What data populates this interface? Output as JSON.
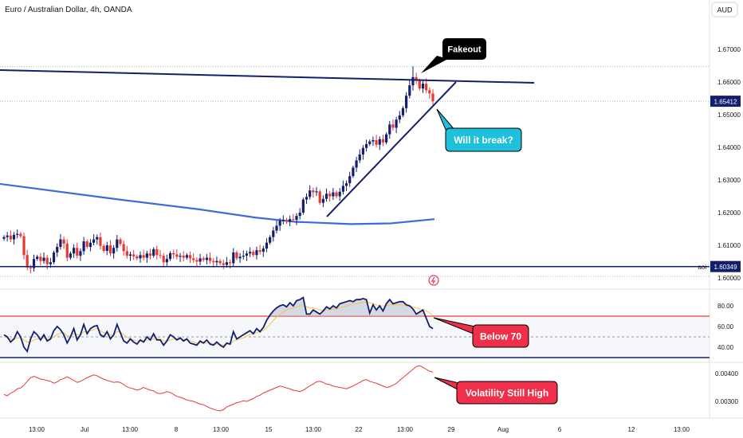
{
  "header": {
    "title": "Euro / Australian Dollar, 4h, OANDA",
    "currency_button": "AUD"
  },
  "colors": {
    "up": "#131f6e",
    "down": "#e53935",
    "price_label_bg": "#131f6e",
    "ma": "#3d6bd8",
    "rsi_band": "#e53935",
    "vol": "#e53935",
    "callout_dark": "#000000",
    "callout_cyan": "#1ec0dc",
    "callout_red": "#f0304a"
  },
  "annotations": {
    "fakeout": "Fakeout",
    "will_it_break": "Will it break?",
    "below_70": "Below 70",
    "volatility": "Volatility Still High"
  },
  "chart_data": [
    {
      "type": "line",
      "subtype": "candlestick",
      "title": "Euro / Australian Dollar, 4h, OANDA",
      "ylim": [
        1.5975,
        1.6775
      ],
      "y_ticks": [
        "1.67000",
        "1.66000",
        "1.65000",
        "1.64000",
        "1.63000",
        "1.62000",
        "1.61000",
        "1.60000"
      ],
      "x_ticks": [
        "13:00",
        "Jul",
        "13:00",
        "8",
        "13:00",
        "15",
        "13:00",
        "22",
        "13:00",
        "29",
        "Aug",
        "6",
        "12",
        "13:00"
      ],
      "current_price": "1.65412",
      "aoi_label": "aoi",
      "aoi_price": "1.60349",
      "series": [
        {
          "name": "",
          "close": [
            1.6125,
            1.613,
            1.6118,
            1.6132,
            1.6135,
            1.6128,
            1.607,
            1.6032,
            1.603,
            1.6058,
            1.6065,
            1.6052,
            1.6062,
            1.6042,
            1.6048,
            1.6078,
            1.6095,
            1.6118,
            1.6105,
            1.6062,
            1.6075,
            1.6092,
            1.6068,
            1.6082,
            1.6112,
            1.6095,
            1.6108,
            1.6118,
            1.6125,
            1.6098,
            1.6083,
            1.61,
            1.6075,
            1.6092,
            1.6118,
            1.6104,
            1.6082,
            1.6068,
            1.6072,
            1.6066,
            1.606,
            1.607,
            1.6062,
            1.6075,
            1.6068,
            1.6088,
            1.607,
            1.6068,
            1.6048,
            1.6058,
            1.6076,
            1.6072,
            1.6065,
            1.6068,
            1.6062,
            1.607,
            1.606,
            1.6055,
            1.605,
            1.606,
            1.6055,
            1.6062,
            1.6052,
            1.6048,
            1.6052,
            1.6045,
            1.604,
            1.6048,
            1.6045,
            1.6078,
            1.606,
            1.6065,
            1.6068,
            1.6075,
            1.608,
            1.607,
            1.6085,
            1.608,
            1.609,
            1.6108,
            1.6125,
            1.6145,
            1.616,
            1.6175,
            1.6178,
            1.6172,
            1.618,
            1.6178,
            1.619,
            1.62,
            1.624,
            1.6248,
            1.6268,
            1.6262,
            1.6265,
            1.623,
            1.6242,
            1.6258,
            1.625,
            1.6262,
            1.625,
            1.6264,
            1.6282,
            1.629,
            1.6312,
            1.6338,
            1.636,
            1.6378,
            1.6398,
            1.641,
            1.6418,
            1.6422,
            1.6408,
            1.6425,
            1.6415,
            1.644,
            1.647,
            1.646,
            1.6485,
            1.6498,
            1.652,
            1.6558,
            1.659,
            1.6615,
            1.6605,
            1.658,
            1.6595,
            1.6575,
            1.6565,
            1.6541
          ]
        },
        {
          "name": "",
          "points": [
            [
              0,
              1.6288
            ],
            [
              150,
              1.624
            ],
            [
              250,
              1.621
            ],
            [
              320,
              1.6185
            ],
            [
              370,
              1.6172
            ],
            [
              440,
              1.6165
            ],
            [
              490,
              1.6167
            ],
            [
              545,
              1.618
            ]
          ]
        }
      ]
    },
    {
      "type": "line",
      "subtype": "RSI",
      "ylim": [
        28,
        95
      ],
      "y_ticks": [
        "80.00",
        "60.00",
        "40.00"
      ],
      "levels": [
        70,
        50
      ],
      "series": [
        {
          "name": "",
          "values": [
            52,
            50,
            45,
            48,
            55,
            50,
            40,
            36,
            48,
            55,
            52,
            47,
            52,
            46,
            48,
            56,
            60,
            57,
            52,
            44,
            50,
            58,
            47,
            52,
            62,
            53,
            58,
            60,
            61,
            52,
            50,
            55,
            48,
            52,
            62,
            54,
            46,
            44,
            48,
            45,
            43,
            47,
            45,
            50,
            47,
            53,
            47,
            47,
            42,
            46,
            52,
            50,
            47,
            49,
            46,
            48,
            44,
            43,
            42,
            46,
            44,
            47,
            43,
            42,
            45,
            42,
            40,
            44,
            43,
            55,
            48,
            50,
            52,
            54,
            56,
            53,
            58,
            55,
            59,
            66,
            71,
            75,
            78,
            80,
            81,
            79,
            83,
            80,
            85,
            86,
            88,
            72,
            72,
            76,
            74,
            72,
            75,
            79,
            77,
            80,
            78,
            82,
            83,
            84,
            85,
            84,
            86,
            86,
            87,
            86,
            73,
            81,
            76,
            80,
            75,
            82,
            86,
            82,
            83,
            84,
            84,
            81,
            80,
            77,
            72,
            74,
            76,
            68,
            60,
            58
          ]
        },
        {
          "name": "",
          "values": [
            50,
            49,
            48,
            48,
            49,
            49,
            47,
            45,
            45,
            47,
            48,
            48,
            49,
            48,
            48,
            50,
            52,
            54,
            54,
            51,
            51,
            53,
            52,
            52,
            55,
            55,
            56,
            57,
            58,
            56,
            54,
            54,
            52,
            52,
            55,
            55,
            52,
            50,
            48,
            47,
            46,
            46,
            46,
            47,
            47,
            48,
            48,
            48,
            46,
            46,
            47,
            48,
            48,
            48,
            47,
            47,
            46,
            45,
            44,
            44,
            44,
            44,
            44,
            43,
            43,
            43,
            42,
            43,
            43,
            46,
            47,
            48,
            49,
            51,
            52,
            53,
            54,
            55,
            56,
            59,
            62,
            66,
            69,
            72,
            74,
            76,
            77,
            78,
            79,
            80,
            80,
            79,
            78,
            78,
            77,
            76,
            76,
            76,
            76,
            77,
            77,
            78,
            79,
            80,
            81,
            82,
            82,
            83,
            83,
            84,
            83,
            82,
            81,
            80,
            80,
            80,
            81,
            81,
            81,
            81,
            81,
            80,
            80,
            79,
            78,
            77,
            76,
            75,
            73,
            71
          ]
        }
      ]
    },
    {
      "type": "line",
      "subtype": "volatility",
      "ylim": [
        0.00245,
        0.00455
      ],
      "y_ticks": [
        "0.00400",
        "0.00300"
      ],
      "series": [
        {
          "name": "",
          "values": [
            0.00325,
            0.0032,
            0.0033,
            0.00335,
            0.00345,
            0.00348,
            0.00358,
            0.00372,
            0.00385,
            0.0039,
            0.00385,
            0.0038,
            0.00378,
            0.00375,
            0.00372,
            0.00365,
            0.0037,
            0.00378,
            0.00382,
            0.00388,
            0.00382,
            0.00375,
            0.00368,
            0.00372,
            0.00378,
            0.00385,
            0.0039,
            0.00395,
            0.00392,
            0.00385,
            0.0038,
            0.00375,
            0.00372,
            0.00368,
            0.0037,
            0.00368,
            0.0036,
            0.00352,
            0.00348,
            0.00345,
            0.0034,
            0.00344,
            0.0035,
            0.00345,
            0.0034,
            0.00338,
            0.0033,
            0.00328,
            0.0033,
            0.00335,
            0.00332,
            0.00325,
            0.00318,
            0.00315,
            0.0031,
            0.00305,
            0.00302,
            0.003,
            0.00295,
            0.0029,
            0.00288,
            0.00282,
            0.00276,
            0.00272,
            0.00268,
            0.00266,
            0.0027,
            0.0028,
            0.00285,
            0.0029,
            0.00295,
            0.00298,
            0.00302,
            0.003,
            0.00305,
            0.0031,
            0.00318,
            0.00322,
            0.0033,
            0.00335,
            0.0034,
            0.00345,
            0.0035,
            0.00355,
            0.00352,
            0.00348,
            0.00345,
            0.0034,
            0.00338,
            0.00335,
            0.0034,
            0.00348,
            0.00356,
            0.00362,
            0.0037,
            0.00372,
            0.00368,
            0.00362,
            0.0036,
            0.00355,
            0.00352,
            0.0035,
            0.00348,
            0.00345,
            0.0035,
            0.00355,
            0.00362,
            0.00368,
            0.00375,
            0.00378,
            0.00372,
            0.00368,
            0.00365,
            0.0036,
            0.00355,
            0.0035,
            0.00352,
            0.00358,
            0.00365,
            0.00375,
            0.00385,
            0.00395,
            0.00405,
            0.00415,
            0.00425,
            0.00428,
            0.00422,
            0.00415,
            0.00408,
            0.00405
          ]
        }
      ]
    }
  ]
}
